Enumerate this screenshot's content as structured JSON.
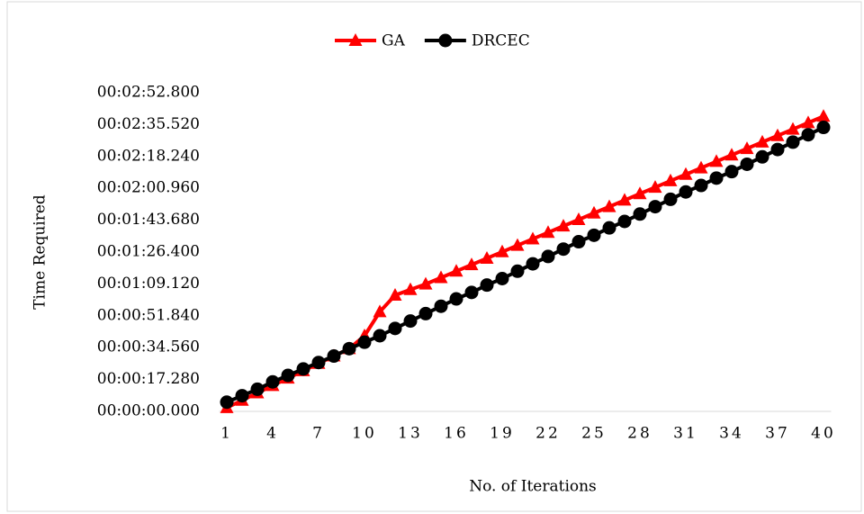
{
  "chart_data": {
    "type": "line",
    "x_label": "No. of Iterations",
    "y_label": "Time Required",
    "categories": [
      "1",
      null,
      null,
      "4",
      null,
      null,
      "7",
      null,
      null,
      "10",
      null,
      null,
      "13",
      null,
      null,
      "16",
      null,
      null,
      "19",
      null,
      null,
      "22",
      null,
      null,
      "25",
      null,
      null,
      "28",
      null,
      null,
      "31",
      null,
      null,
      "34",
      null,
      null,
      "37",
      null,
      null,
      "40"
    ],
    "series": [
      {
        "name": "GA",
        "color": "#ff0000",
        "marker": "triangle",
        "values": [
          2,
          6,
          10,
          14,
          18,
          22,
          26,
          30,
          34,
          41,
          54,
          63,
          66,
          69,
          72.5,
          76,
          79.5,
          83,
          86.5,
          90,
          93.5,
          97,
          100.5,
          104,
          107.5,
          111,
          114.5,
          118,
          121.5,
          125,
          128.5,
          132,
          135.5,
          139,
          142.5,
          146,
          149.5,
          153,
          156.5,
          160
        ]
      },
      {
        "name": "DRCEC",
        "color": "#000000",
        "marker": "circle",
        "values": [
          5,
          8.5,
          12,
          16,
          19.5,
          23,
          26.5,
          30,
          34,
          37.5,
          41,
          45,
          49,
          53,
          57,
          61,
          64.5,
          68.5,
          72,
          76,
          80,
          84,
          88,
          92,
          95.5,
          99.5,
          103,
          107,
          111,
          115,
          119,
          122.5,
          126.5,
          130,
          134,
          138,
          142,
          146,
          150,
          154
        ]
      }
    ],
    "ylim": [
      0,
      172.8
    ],
    "yticks": [
      {
        "value": 0,
        "label": "00:00:00.000"
      },
      {
        "value": 17.28,
        "label": "00:00:17.280"
      },
      {
        "value": 34.56,
        "label": "00:00:34.560"
      },
      {
        "value": 51.84,
        "label": "00:00:51.840"
      },
      {
        "value": 69.12,
        "label": "00:01:09.120"
      },
      {
        "value": 86.4,
        "label": "00:01:26.400"
      },
      {
        "value": 103.68,
        "label": "00:01:43.680"
      },
      {
        "value": 120.96,
        "label": "00:02:00.960"
      },
      {
        "value": 138.24,
        "label": "00:02:18.240"
      },
      {
        "value": 155.52,
        "label": "00:02:35.520"
      },
      {
        "value": 172.8,
        "label": "00:02:52.800"
      }
    ],
    "grid": false,
    "legend": "top"
  }
}
